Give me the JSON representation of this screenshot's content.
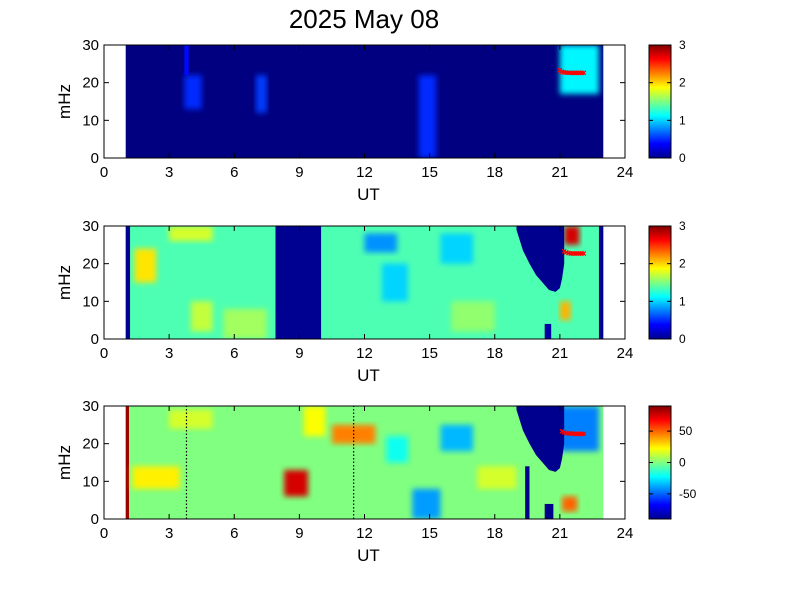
{
  "title": "2025 May 08",
  "colors": {
    "jet_colormap": [
      "#00008f",
      "#0000ff",
      "#00ffff",
      "#ffff00",
      "#ff0000",
      "#800000"
    ],
    "background_fill": "#00008f",
    "marker_color": "#ff0000"
  },
  "chart_data": [
    {
      "type": "heatmap",
      "panel": "top",
      "xlabel": "UT",
      "ylabel": "mHz",
      "xlim": [
        0,
        24
      ],
      "ylim": [
        0,
        30
      ],
      "xticks": [
        "0",
        "3",
        "6",
        "9",
        "12",
        "15",
        "18",
        "21",
        "24"
      ],
      "yticks": [
        "0",
        "10",
        "20",
        "30"
      ],
      "data_x_range": [
        1,
        23
      ],
      "colorbar": {
        "min": 0,
        "max": 3,
        "ticks": [
          "0",
          "1",
          "2",
          "3"
        ]
      },
      "background_value": 0,
      "patches": [
        {
          "x": [
            3.7,
            4.5
          ],
          "y": [
            13,
            22
          ],
          "value": 0.5
        },
        {
          "x": [
            3.7,
            3.9
          ],
          "y": [
            22,
            30
          ],
          "value": 0.4
        },
        {
          "x": [
            7.0,
            7.5
          ],
          "y": [
            12,
            22
          ],
          "value": 0.55
        },
        {
          "x": [
            14.5,
            15.3
          ],
          "y": [
            0,
            22
          ],
          "value": 0.5
        },
        {
          "x": [
            21.0,
            22.8
          ],
          "y": [
            17,
            30
          ],
          "value": 1.1
        }
      ],
      "markers": {
        "x": [
          21.0,
          21.1,
          21.2,
          21.3,
          21.4,
          21.5,
          21.6,
          21.7,
          21.8,
          21.9,
          22.0,
          22.1
        ],
        "y": [
          23.3,
          22.9,
          22.7,
          22.7,
          22.6,
          22.6,
          22.6,
          22.6,
          22.6,
          22.6,
          22.6,
          22.6
        ]
      }
    },
    {
      "type": "heatmap",
      "panel": "middle",
      "xlabel": "UT",
      "ylabel": "mHz",
      "xlim": [
        0,
        24
      ],
      "ylim": [
        0,
        30
      ],
      "xticks": [
        "0",
        "3",
        "6",
        "9",
        "12",
        "15",
        "18",
        "21",
        "24"
      ],
      "yticks": [
        "0",
        "10",
        "20",
        "30"
      ],
      "data_x_range": [
        1,
        23
      ],
      "colorbar": {
        "min": 0,
        "max": 3,
        "ticks": [
          "0",
          "1",
          "2",
          "3"
        ]
      },
      "background_value": 1.35,
      "patches": [
        {
          "x": [
            1.0,
            1.2
          ],
          "y": [
            0,
            30
          ],
          "value": 0.05
        },
        {
          "x": [
            1.4,
            2.4
          ],
          "y": [
            15,
            24
          ],
          "value": 1.95
        },
        {
          "x": [
            3.0,
            5.0
          ],
          "y": [
            26,
            30
          ],
          "value": 1.75
        },
        {
          "x": [
            4.0,
            5.0
          ],
          "y": [
            2,
            10
          ],
          "value": 1.7
        },
        {
          "x": [
            5.5,
            7.5
          ],
          "y": [
            0,
            8
          ],
          "value": 1.6
        },
        {
          "x": [
            7.9,
            10.0
          ],
          "y": [
            0,
            30
          ],
          "value": 0.05
        },
        {
          "x": [
            12.0,
            13.5
          ],
          "y": [
            23,
            28
          ],
          "value": 0.8
        },
        {
          "x": [
            12.8,
            14.0
          ],
          "y": [
            10,
            20
          ],
          "value": 1.0
        },
        {
          "x": [
            15.5,
            17.0
          ],
          "y": [
            20,
            28
          ],
          "value": 1.0
        },
        {
          "x": [
            16.0,
            18.0
          ],
          "y": [
            2,
            10
          ],
          "value": 1.55
        },
        {
          "x": [
            20.3,
            20.6
          ],
          "y": [
            0,
            4
          ],
          "value": 0.1
        },
        {
          "x": [
            21.0,
            21.5
          ],
          "y": [
            5,
            10
          ],
          "value": 2.1
        },
        {
          "x": [
            21.2,
            21.9
          ],
          "y": [
            25,
            30
          ],
          "value": 2.75
        },
        {
          "x": [
            22.8,
            23.0
          ],
          "y": [
            0,
            30
          ],
          "value": 0.05
        }
      ],
      "void_region": {
        "x": [
          19.0,
          19.3,
          19.6,
          19.9,
          20.2,
          20.5,
          20.8,
          21.0,
          21.1,
          21.2,
          21.2
        ],
        "y_bottom": [
          29.0,
          23.5,
          20.0,
          17.0,
          15.0,
          13.0,
          12.5,
          13.5,
          16.0,
          20.0,
          30.0
        ]
      },
      "markers": {
        "x": [
          21.2,
          21.3,
          21.4,
          21.5,
          21.6,
          21.7,
          21.8,
          21.9,
          22.0,
          22.1
        ],
        "y": [
          23.3,
          23.0,
          22.8,
          22.7,
          22.7,
          22.7,
          22.7,
          22.7,
          22.7,
          22.7
        ]
      }
    },
    {
      "type": "heatmap",
      "panel": "bottom",
      "xlabel": "UT",
      "ylabel": "mHz",
      "xlim": [
        0,
        24
      ],
      "ylim": [
        0,
        30
      ],
      "xticks": [
        "0",
        "3",
        "6",
        "9",
        "12",
        "15",
        "18",
        "21",
        "24"
      ],
      "yticks": [
        "0",
        "10",
        "20",
        "30"
      ],
      "data_x_range": [
        1,
        23
      ],
      "colorbar": {
        "min": -90,
        "max": 90,
        "ticks": [
          "50",
          "0",
          "-50"
        ],
        "tick_values": [
          50,
          0,
          -50
        ]
      },
      "background_value": 0,
      "patches": [
        {
          "x": [
            1.0,
            1.15
          ],
          "y": [
            0,
            30
          ],
          "value": 85
        },
        {
          "x": [
            1.3,
            3.5
          ],
          "y": [
            8,
            14
          ],
          "value": 25
        },
        {
          "x": [
            3.0,
            5.0
          ],
          "y": [
            24,
            29
          ],
          "value": 15
        },
        {
          "x": [
            8.3,
            9.4
          ],
          "y": [
            6,
            13
          ],
          "value": 75
        },
        {
          "x": [
            9.2,
            10.2
          ],
          "y": [
            22,
            30
          ],
          "value": 22
        },
        {
          "x": [
            10.5,
            12.5
          ],
          "y": [
            20,
            25
          ],
          "value": 45
        },
        {
          "x": [
            13.0,
            14.0
          ],
          "y": [
            15,
            22
          ],
          "value": -20
        },
        {
          "x": [
            14.2,
            15.5
          ],
          "y": [
            0,
            8
          ],
          "value": -40
        },
        {
          "x": [
            15.5,
            17.0
          ],
          "y": [
            18,
            25
          ],
          "value": -35
        },
        {
          "x": [
            17.2,
            19.0
          ],
          "y": [
            8,
            14
          ],
          "value": 15
        },
        {
          "x": [
            19.4,
            19.6
          ],
          "y": [
            0,
            14
          ],
          "value": -88
        },
        {
          "x": [
            20.3,
            20.7
          ],
          "y": [
            0,
            4
          ],
          "value": -88
        },
        {
          "x": [
            21.1,
            21.8
          ],
          "y": [
            2,
            6
          ],
          "value": 50
        },
        {
          "x": [
            21.0,
            22.8
          ],
          "y": [
            18,
            30
          ],
          "value": -45
        }
      ],
      "void_region": {
        "x": [
          19.0,
          19.3,
          19.6,
          19.9,
          20.2,
          20.5,
          20.8,
          21.0,
          21.1,
          21.2,
          21.2
        ],
        "y_bottom": [
          29.0,
          23.5,
          20.0,
          17.0,
          15.0,
          13.0,
          12.5,
          13.5,
          16.0,
          20.0,
          30.0
        ]
      },
      "dotted_lines": {
        "x": [
          3.8,
          11.5
        ],
        "y": [
          0,
          30
        ]
      },
      "markers": {
        "x": [
          21.1,
          21.2,
          21.3,
          21.4,
          21.5,
          21.6,
          21.7,
          21.8,
          21.9,
          22.0,
          22.1
        ],
        "y": [
          23.3,
          23.0,
          22.8,
          22.7,
          22.7,
          22.6,
          22.6,
          22.6,
          22.6,
          22.6,
          22.6
        ]
      }
    }
  ]
}
